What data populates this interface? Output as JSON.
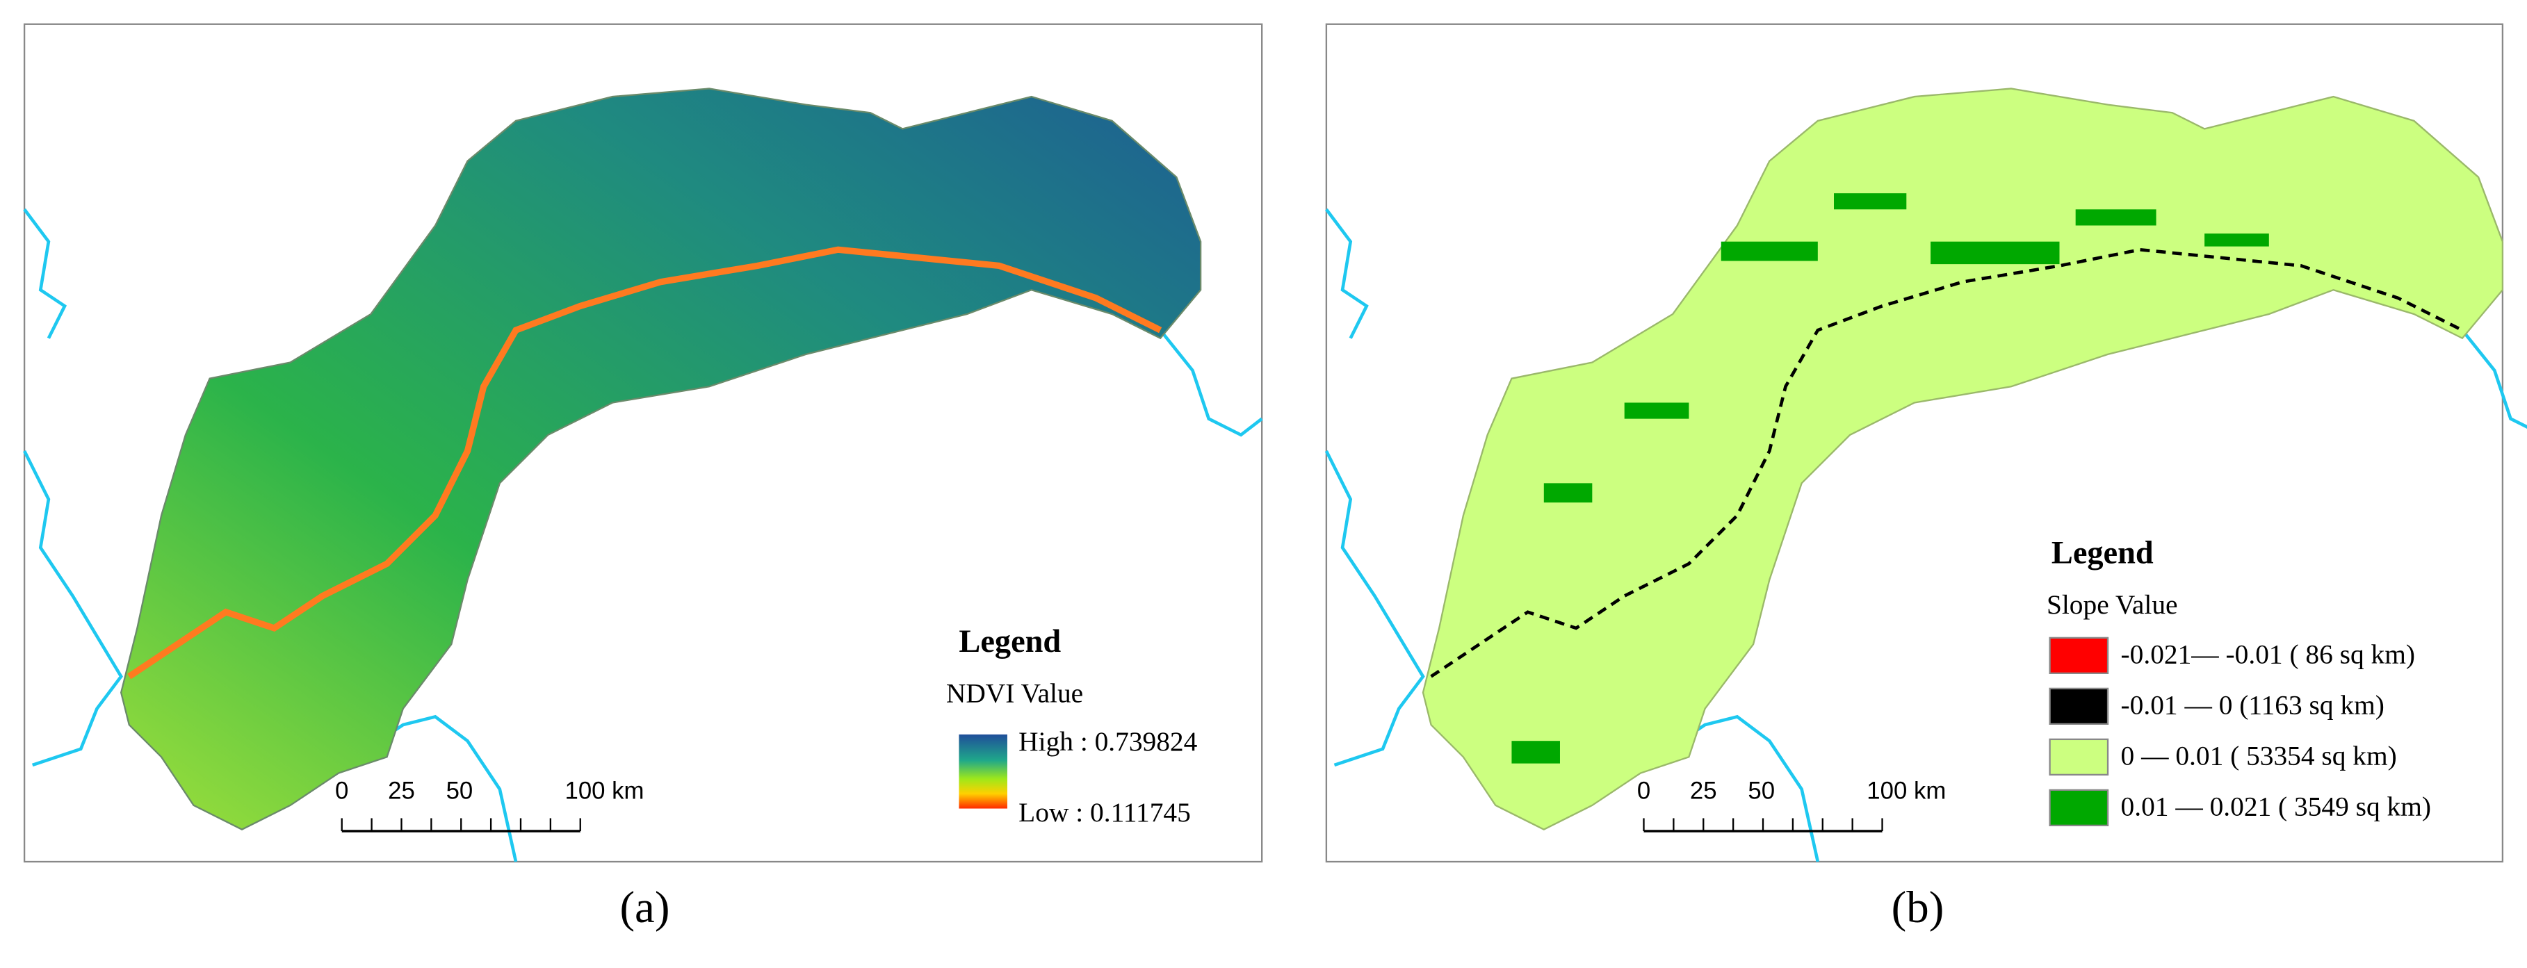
{
  "panels": [
    {
      "legend_title": "Legend",
      "field": "NDVI Value",
      "high_label": "High : 0.739824",
      "low_label": "Low : 0.111745",
      "scale_labels": [
        "0",
        "25",
        "50",
        "100 km"
      ],
      "caption": "(a)"
    },
    {
      "legend_title": "Legend",
      "field": "Slope Value",
      "classes": [
        {
          "label": "-0.021— -0.01 ( 86 sq km)",
          "color": "#ff0000"
        },
        {
          "label": "-0.01 — 0 (1163 sq km)",
          "color": "#000000"
        },
        {
          "label": "0 — 0.01 ( 53354 sq km)",
          "color": "#ccff80"
        },
        {
          "label": "0.01 — 0.021 ( 3549 sq km)",
          "color": "#00a800"
        }
      ],
      "scale_labels": [
        "0",
        "25",
        "50",
        "100 km"
      ],
      "caption": "(b)"
    }
  ]
}
